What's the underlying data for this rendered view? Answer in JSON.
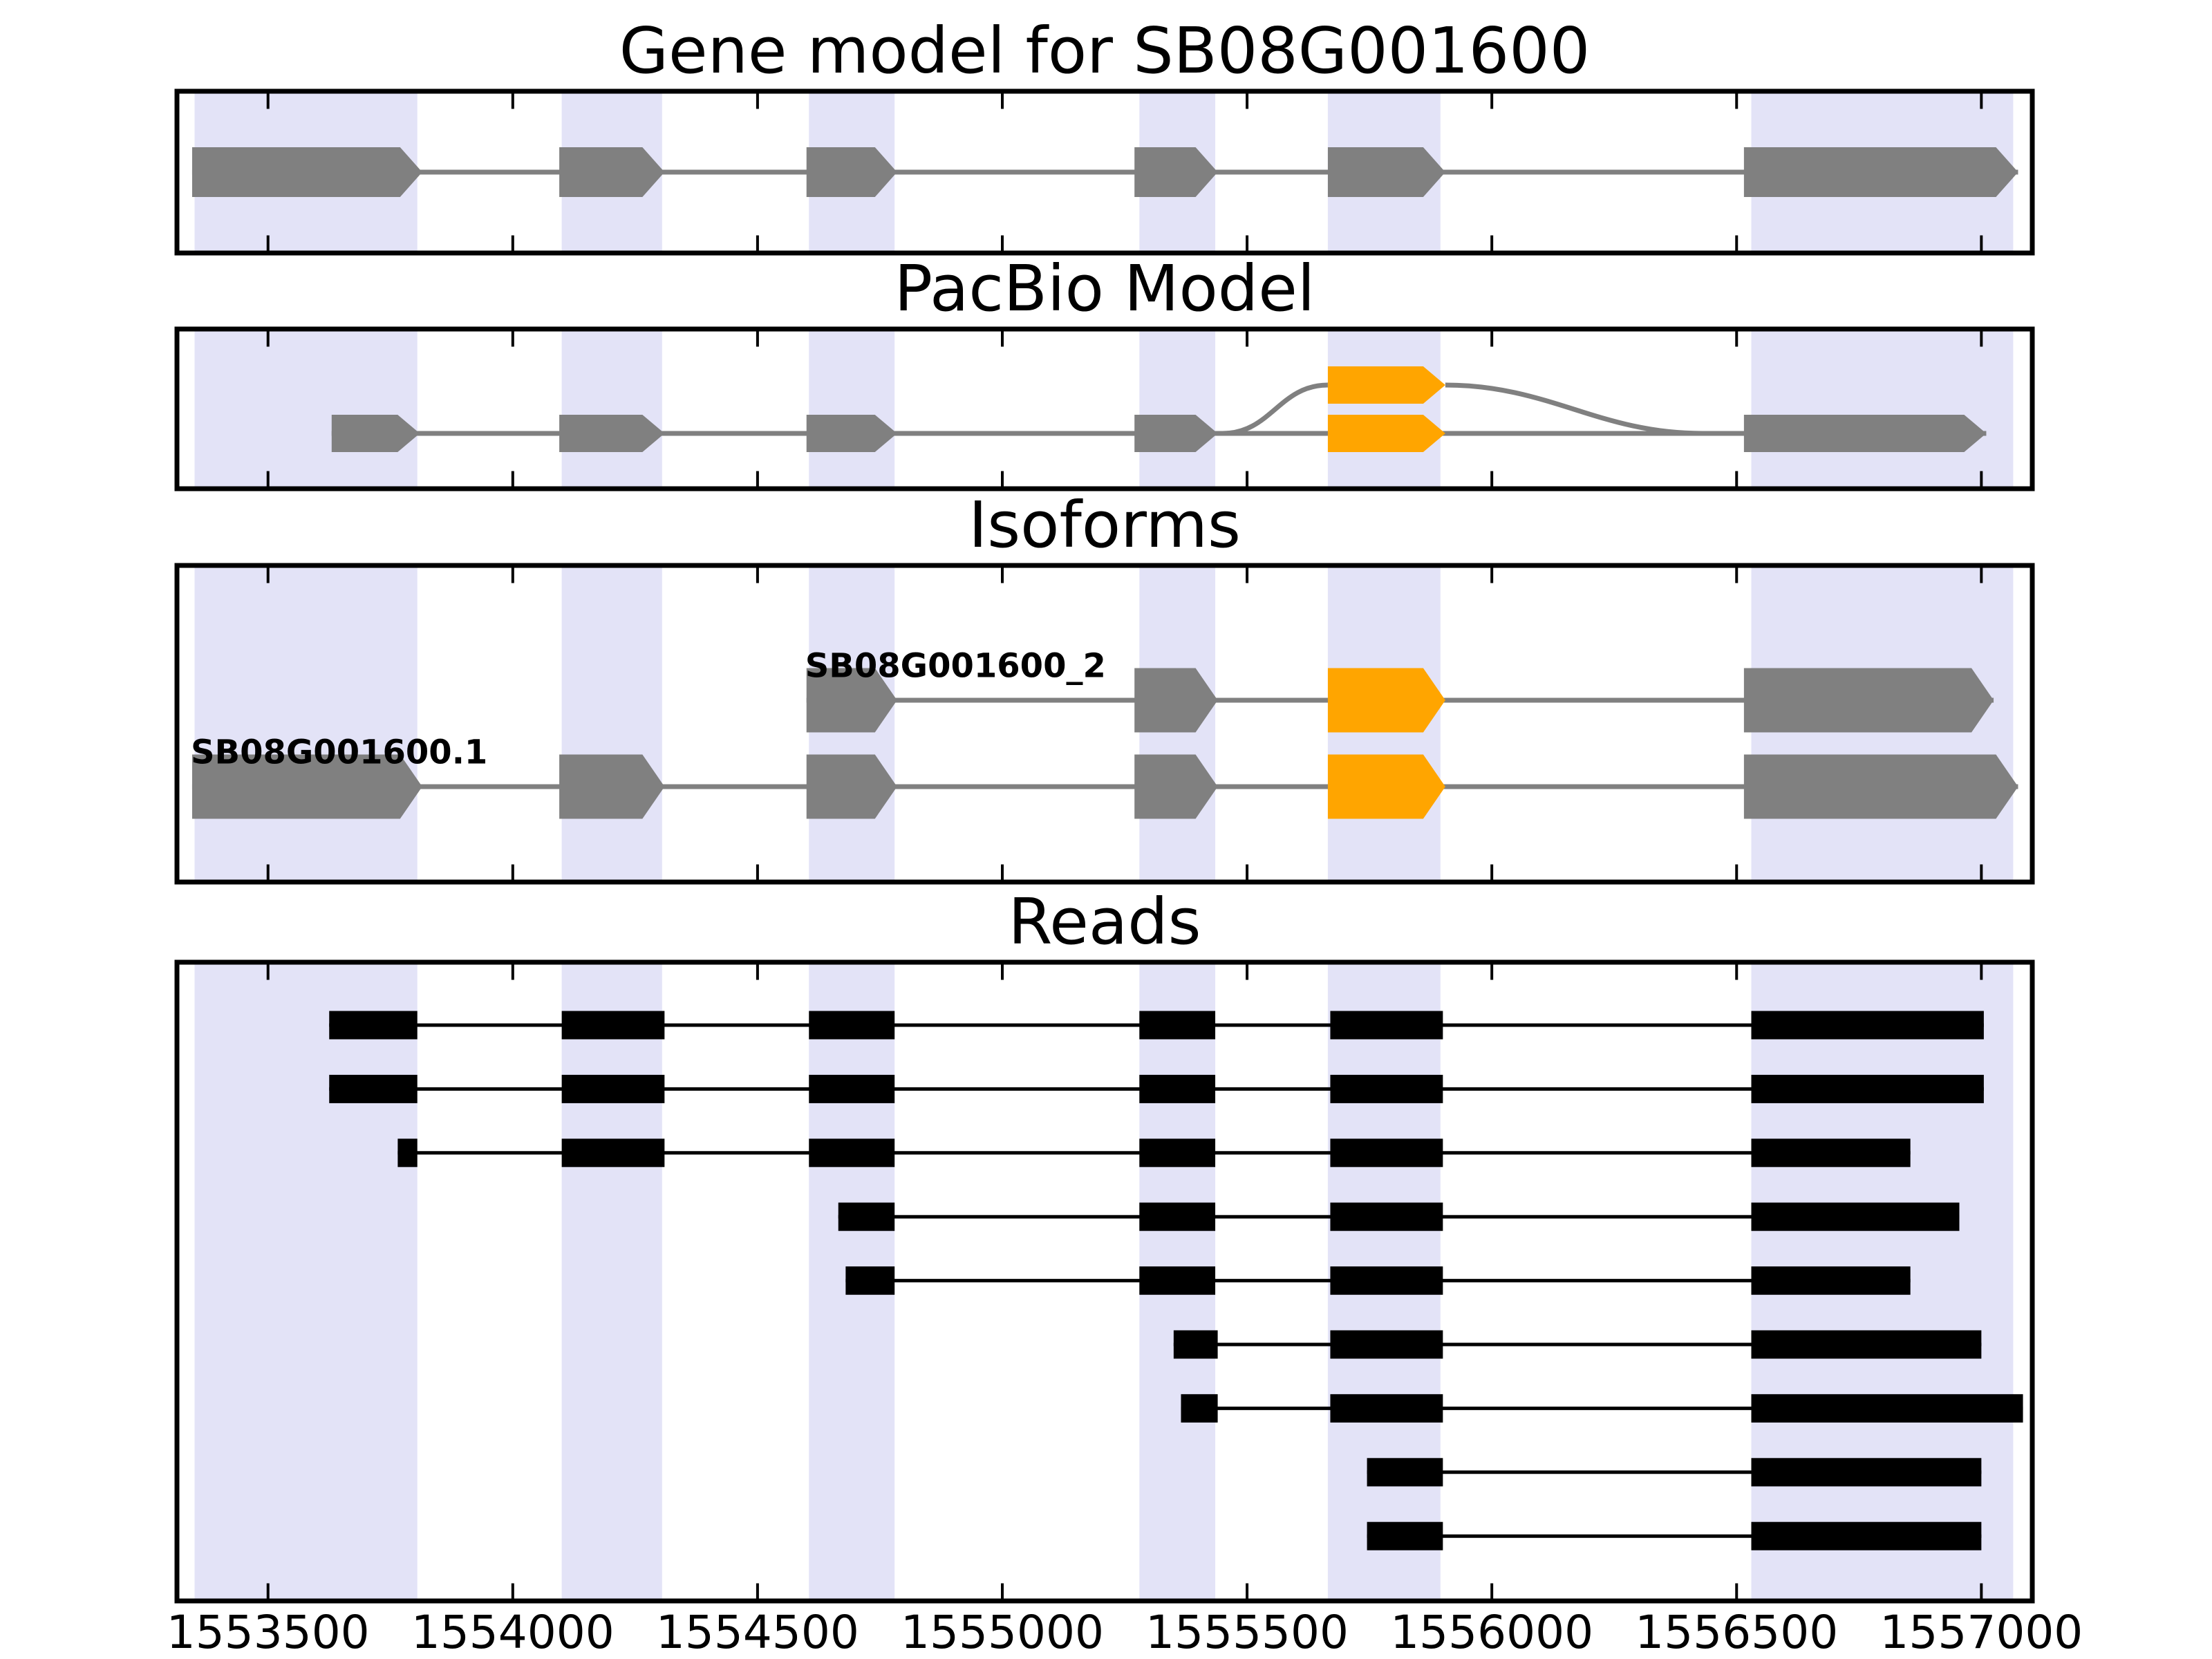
{
  "figure_title": "Gene model for SB08G001600",
  "chart_data": {
    "type": "gene-model-tracks",
    "x_domain": [
      1553314,
      1557104
    ],
    "x_ticks": [
      1553500,
      1554000,
      1554500,
      1555000,
      1555500,
      1556000,
      1556500,
      1557000
    ],
    "x_tick_labels": [
      "1553500",
      "1554000",
      "1554500",
      "1555000",
      "1555500",
      "1556000",
      "1556500",
      "1557000"
    ],
    "legend_position": "none",
    "grid": false,
    "colors": {
      "exon": "#808080",
      "alt_exon": "#FFA500",
      "intron_line": "#808080",
      "highlight_band": "#E3E3F7",
      "read": "#000000",
      "frame": "#000000"
    },
    "highlight_bands": [
      [
        1553350,
        1553805
      ],
      [
        1554100,
        1554305
      ],
      [
        1554605,
        1554780
      ],
      [
        1555280,
        1555435
      ],
      [
        1555665,
        1555895
      ],
      [
        1556530,
        1557065
      ]
    ],
    "panels": [
      {
        "id": "gene-model",
        "title": "Gene model for SB08G001600",
        "transcripts": [
          {
            "name": "",
            "track": "main",
            "line": [
              1553345,
              1557075
            ],
            "exons": [
              {
                "start": 1553345,
                "end": 1553815,
                "color": "exon"
              },
              {
                "start": 1554095,
                "end": 1554310,
                "color": "exon"
              },
              {
                "start": 1554600,
                "end": 1554785,
                "color": "exon"
              },
              {
                "start": 1555270,
                "end": 1555440,
                "color": "exon"
              },
              {
                "start": 1555665,
                "end": 1555905,
                "color": "exon"
              },
              {
                "start": 1556515,
                "end": 1557075,
                "color": "exon"
              }
            ]
          }
        ]
      },
      {
        "id": "pacbio-model",
        "title": "PacBio Model",
        "transcripts": [
          {
            "name": "",
            "track": "main",
            "line": [
              1553630,
              1557010
            ],
            "exons": [
              {
                "start": 1553630,
                "end": 1553810,
                "color": "exon"
              },
              {
                "start": 1554095,
                "end": 1554310,
                "color": "exon"
              },
              {
                "start": 1554600,
                "end": 1554785,
                "color": "exon"
              },
              {
                "start": 1555270,
                "end": 1555440,
                "color": "exon"
              },
              {
                "start": 1555665,
                "end": 1555905,
                "color": "alt_exon"
              },
              {
                "start": 1556515,
                "end": 1557010,
                "color": "exon"
              }
            ]
          },
          {
            "name": "",
            "track": "skip",
            "line": null,
            "exons": [
              {
                "start": 1555665,
                "end": 1555905,
                "color": "alt_exon"
              }
            ]
          }
        ],
        "splice_curves": [
          {
            "from": 1555450,
            "to": 1555665,
            "direction": "up"
          },
          {
            "from": 1555905,
            "to": 1556430,
            "direction": "down"
          }
        ]
      },
      {
        "id": "isoforms",
        "title": "Isoforms",
        "transcripts": [
          {
            "name": "SB08G001600_2",
            "track": "row0",
            "line": [
              1554600,
              1557025
            ],
            "exons": [
              {
                "start": 1554600,
                "end": 1554785,
                "color": "exon"
              },
              {
                "start": 1555270,
                "end": 1555440,
                "color": "exon"
              },
              {
                "start": 1555665,
                "end": 1555905,
                "color": "alt_exon"
              },
              {
                "start": 1556515,
                "end": 1557025,
                "color": "exon"
              }
            ]
          },
          {
            "name": "SB08G001600.1",
            "track": "row1",
            "line": [
              1553345,
              1557075
            ],
            "exons": [
              {
                "start": 1553345,
                "end": 1553815,
                "color": "exon"
              },
              {
                "start": 1554095,
                "end": 1554310,
                "color": "exon"
              },
              {
                "start": 1554600,
                "end": 1554785,
                "color": "exon"
              },
              {
                "start": 1555270,
                "end": 1555440,
                "color": "exon"
              },
              {
                "start": 1555665,
                "end": 1555905,
                "color": "alt_exon"
              },
              {
                "start": 1556515,
                "end": 1557075,
                "color": "exon"
              }
            ]
          }
        ]
      },
      {
        "id": "reads",
        "title": "Reads",
        "reads": [
          {
            "blocks": [
              [
                1553625,
                1553805
              ],
              [
                1554100,
                1554310
              ],
              [
                1554605,
                1554780
              ],
              [
                1555280,
                1555435
              ],
              [
                1555670,
                1555900
              ],
              [
                1556530,
                1557005
              ]
            ]
          },
          {
            "blocks": [
              [
                1553625,
                1553805
              ],
              [
                1554100,
                1554310
              ],
              [
                1554605,
                1554780
              ],
              [
                1555280,
                1555435
              ],
              [
                1555670,
                1555900
              ],
              [
                1556530,
                1557005
              ]
            ]
          },
          {
            "blocks": [
              [
                1553765,
                1553805
              ],
              [
                1554100,
                1554310
              ],
              [
                1554605,
                1554780
              ],
              [
                1555280,
                1555435
              ],
              [
                1555670,
                1555900
              ],
              [
                1556530,
                1556855
              ]
            ]
          },
          {
            "blocks": [
              [
                1554665,
                1554780
              ],
              [
                1555280,
                1555435
              ],
              [
                1555670,
                1555900
              ],
              [
                1556530,
                1556955
              ]
            ]
          },
          {
            "blocks": [
              [
                1554680,
                1554780
              ],
              [
                1555280,
                1555435
              ],
              [
                1555670,
                1555900
              ],
              [
                1556530,
                1556855
              ]
            ]
          },
          {
            "blocks": [
              [
                1555350,
                1555440
              ],
              [
                1555670,
                1555900
              ],
              [
                1556530,
                1557000
              ]
            ]
          },
          {
            "blocks": [
              [
                1555365,
                1555440
              ],
              [
                1555670,
                1555900
              ],
              [
                1556530,
                1557085
              ]
            ]
          },
          {
            "blocks": [
              [
                1555745,
                1555900
              ],
              [
                1556530,
                1557000
              ]
            ]
          },
          {
            "blocks": [
              [
                1555745,
                1555900
              ],
              [
                1556530,
                1557000
              ]
            ]
          }
        ]
      }
    ]
  }
}
